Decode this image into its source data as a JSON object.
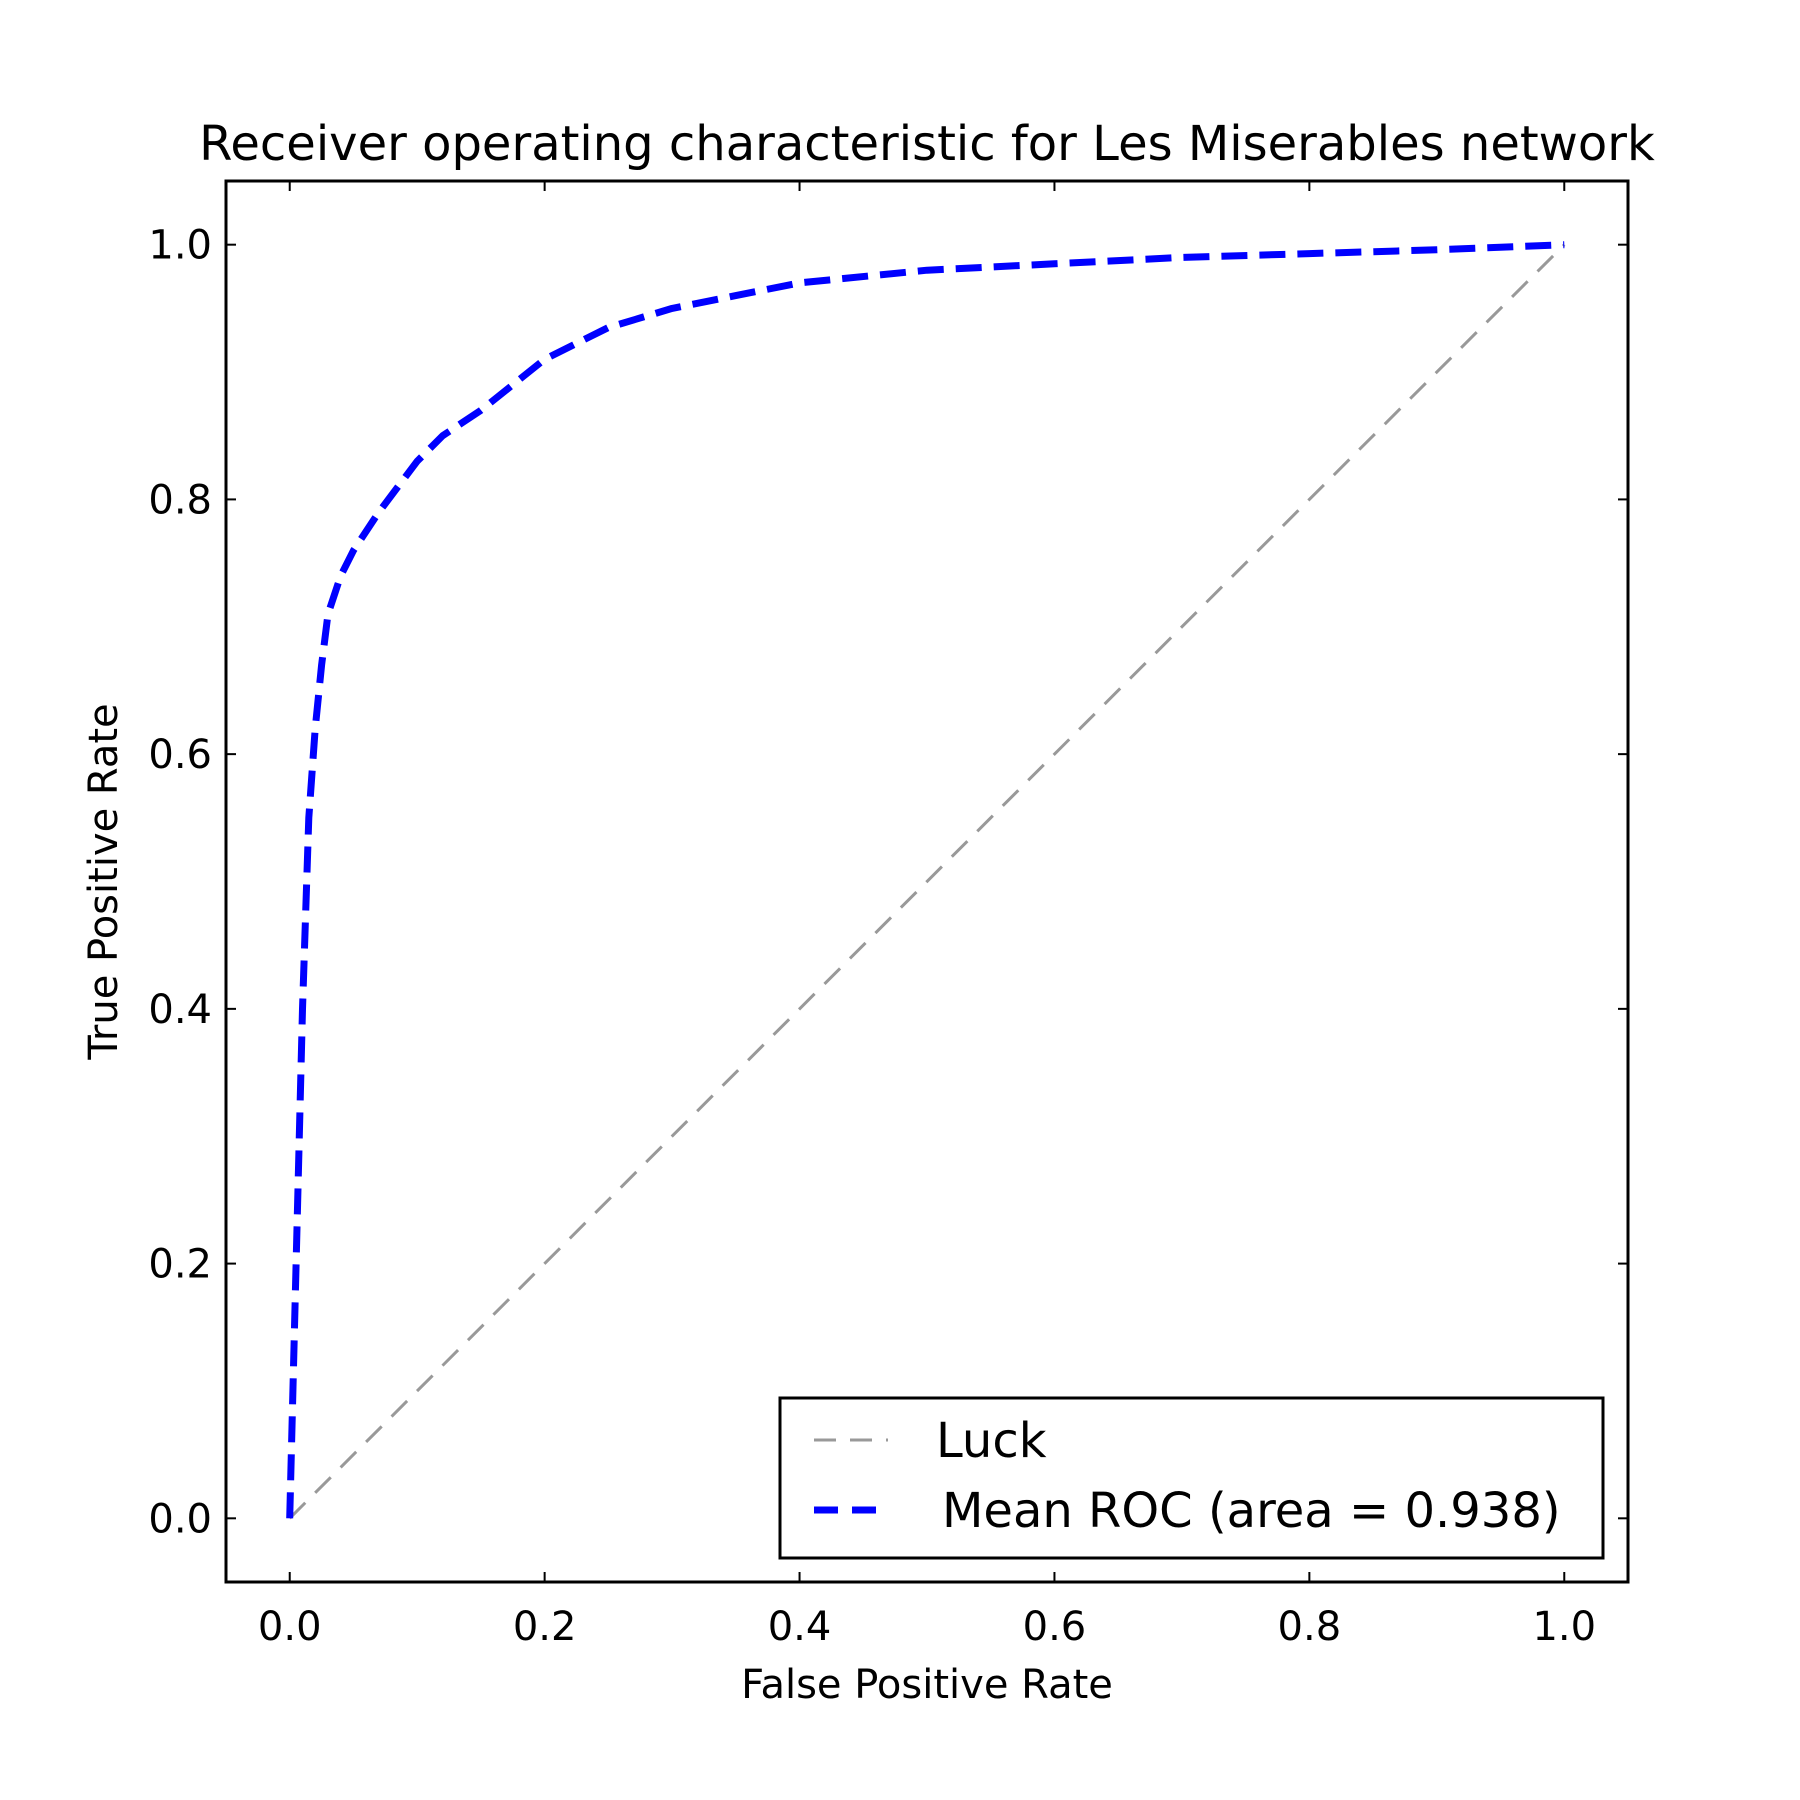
{
  "chart_data": {
    "type": "line",
    "title": "Receiver operating characteristic for Les Miserables network",
    "xlabel": "False Positive Rate",
    "ylabel": "True Positive Rate",
    "xlim": [
      -0.05,
      1.05
    ],
    "ylim": [
      -0.05,
      1.05
    ],
    "xticks": [
      "0.0",
      "0.2",
      "0.4",
      "0.6",
      "0.8",
      "1.0"
    ],
    "yticks": [
      "0.0",
      "0.2",
      "0.4",
      "0.6",
      "0.8",
      "1.0"
    ],
    "grid": false,
    "legend_position": "lower-right",
    "series": [
      {
        "name": "Luck",
        "color": "#999999",
        "style": "dashed",
        "x": [
          0,
          1
        ],
        "y": [
          0,
          1
        ]
      },
      {
        "name": "Mean ROC (area = 0.938)",
        "color": "#0000ff",
        "style": "dashed",
        "x": [
          0.0,
          0.005,
          0.01,
          0.015,
          0.02,
          0.025,
          0.03,
          0.04,
          0.05,
          0.07,
          0.1,
          0.12,
          0.15,
          0.2,
          0.25,
          0.3,
          0.35,
          0.4,
          0.5,
          0.6,
          0.7,
          0.8,
          0.9,
          1.0
        ],
        "y": [
          0.0,
          0.2,
          0.4,
          0.55,
          0.62,
          0.67,
          0.71,
          0.74,
          0.76,
          0.79,
          0.83,
          0.85,
          0.87,
          0.91,
          0.935,
          0.95,
          0.96,
          0.97,
          0.98,
          0.985,
          0.99,
          0.993,
          0.996,
          1.0
        ]
      }
    ]
  }
}
